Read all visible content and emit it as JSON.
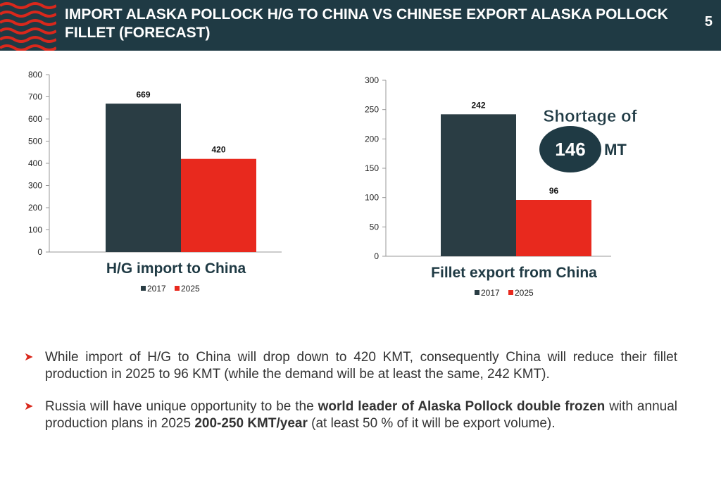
{
  "header": {
    "title": "IMPORT ALASKA POLLOCK H/G TO CHINA VS CHINESE EXPORT ALASKA POLLOCK FILLET (FORECAST)",
    "page_number": "5",
    "colors": {
      "background": "#1f3a44",
      "wave": "#d9281c"
    },
    "logo_icon": "red-waves-icon"
  },
  "chart_data": [
    {
      "type": "bar",
      "title": "H/G import to China",
      "categories": [
        ""
      ],
      "series": [
        {
          "name": "2017",
          "values": [
            669
          ],
          "color": "#2a3d44"
        },
        {
          "name": "2025",
          "values": [
            420
          ],
          "color": "#e8291e"
        }
      ],
      "data_labels": [
        "669",
        "420"
      ],
      "ylim": [
        0,
        800
      ],
      "yticks": [
        "0",
        "100",
        "200",
        "300",
        "400",
        "500",
        "600",
        "700",
        "800"
      ],
      "legend": "bottom",
      "grid": false
    },
    {
      "type": "bar",
      "title": "Fillet export from China",
      "categories": [
        ""
      ],
      "series": [
        {
          "name": "2017",
          "values": [
            242
          ],
          "color": "#2a3d44"
        },
        {
          "name": "2025",
          "values": [
            96
          ],
          "color": "#e8291e"
        }
      ],
      "data_labels": [
        "242",
        "96"
      ],
      "ylim": [
        0,
        300
      ],
      "yticks": [
        "0",
        "50",
        "100",
        "150",
        "200",
        "250",
        "300"
      ],
      "legend": "bottom",
      "grid": false,
      "annotation": {
        "line1": "Shortage of",
        "value": "146",
        "unit": "MT"
      }
    }
  ],
  "bullets": [
    {
      "text": "While import of H/G to China will drop down to 420 KMT, consequently China will reduce their fillet production in 2025 to 96 KMT (while the demand will be at least the same, 242 KMT)."
    },
    {
      "part1": "Russia will have unique opportunity to be the ",
      "bold1": "world leader of Alaska Pollock double frozen",
      "part2": " with annual production plans in 2025 ",
      "bold2": "200-250 KMT/year",
      "part3": "  (at least 50 % of it will be export volume)."
    }
  ],
  "bullet_icon": "arrow-right-icon"
}
